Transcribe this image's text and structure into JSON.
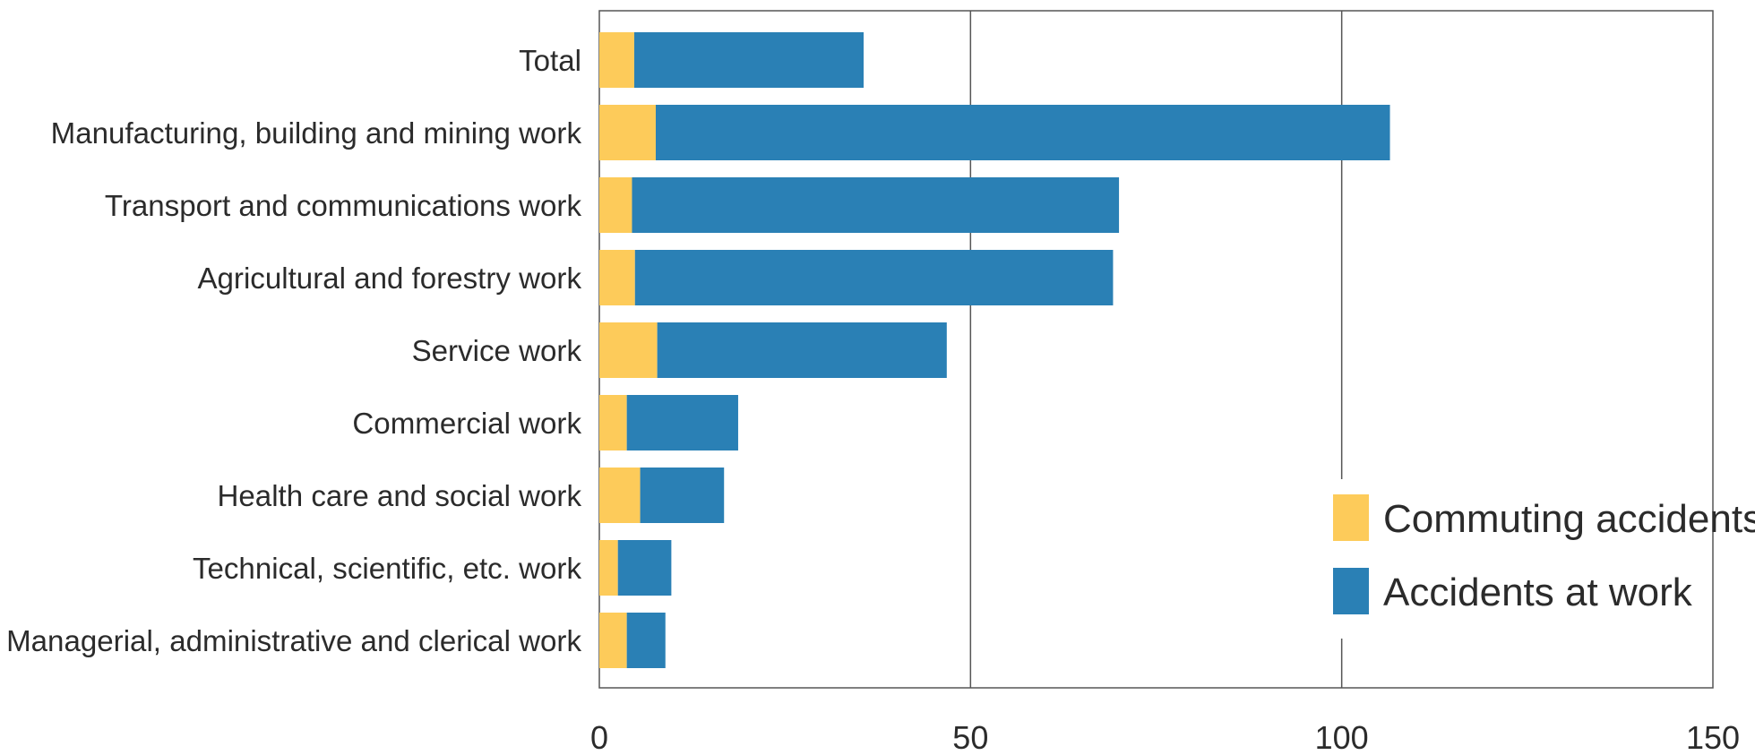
{
  "chart_data": {
    "type": "bar",
    "orientation": "horizontal",
    "stacked": true,
    "categories": [
      "Total",
      "Manufacturing, building and mining work",
      "Transport and communications work",
      "Agricultural and forestry work",
      "Service work",
      "Commercial work",
      "Health care and social work",
      "Technical, scientific, etc. work",
      "Managerial, administrative and clerical work"
    ],
    "series": [
      {
        "name": "Commuting accidents",
        "color": "#FDCB5A",
        "values": [
          4.7,
          7.6,
          4.4,
          4.8,
          7.8,
          3.7,
          5.5,
          2.5,
          3.7
        ]
      },
      {
        "name": "Accidents at work",
        "color": "#2A80B5",
        "values": [
          30.9,
          98.9,
          65.6,
          64.4,
          39.0,
          15.0,
          11.3,
          7.2,
          5.2
        ]
      }
    ],
    "xlim": [
      0,
      150
    ],
    "xticks": [
      0,
      50,
      100,
      150
    ],
    "grid": "vertical",
    "legend_position": "bottom-right",
    "title": "",
    "xlabel": "",
    "ylabel": ""
  }
}
